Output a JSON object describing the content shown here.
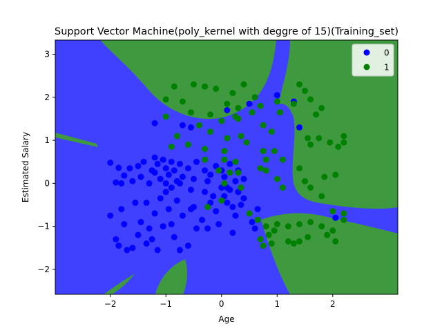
{
  "chart_data": {
    "type": "scatter",
    "title": "Support Vector Machine(poly_kernel with deggre of 15)(Training_set)",
    "xlabel": "Age",
    "ylabel": "Estimated Salary",
    "xlim": [
      -2.99,
      3.17
    ],
    "ylim": [
      -2.58,
      3.33
    ],
    "xticks": [
      -2,
      -1,
      0,
      1,
      2
    ],
    "yticks": [
      -2,
      -1,
      0,
      1,
      2,
      3
    ],
    "grid": false,
    "legend_position": "top-right",
    "region_colors": {
      "0": "#4040ff",
      "1": "#3f9a3f"
    },
    "series": [
      {
        "name": "0",
        "color": "#0000ff",
        "points": [
          [
            -2.0,
            0.48
          ],
          [
            -1.85,
            0.36
          ],
          [
            -1.75,
            0.18
          ],
          [
            -1.65,
            0.35
          ],
          [
            -1.6,
            0.05
          ],
          [
            -1.8,
            0.0
          ],
          [
            -1.9,
            0.02
          ],
          [
            -1.5,
            0.4
          ],
          [
            -1.45,
            0.15
          ],
          [
            -1.4,
            0.5
          ],
          [
            -1.3,
            0.0
          ],
          [
            -1.25,
            0.3
          ],
          [
            -1.2,
            0.6
          ],
          [
            -1.15,
            0.45
          ],
          [
            -1.1,
            0.1
          ],
          [
            -1.05,
            0.55
          ],
          [
            -1.0,
            0.35
          ],
          [
            -0.95,
            0.2
          ],
          [
            -0.9,
            0.5
          ],
          [
            -0.85,
            0.3
          ],
          [
            -0.8,
            0.05
          ],
          [
            -0.75,
            0.45
          ],
          [
            -0.7,
            0.15
          ],
          [
            -0.6,
            0.35
          ],
          [
            -0.5,
            0.1
          ],
          [
            -0.45,
            0.5
          ],
          [
            -0.3,
            0.3
          ],
          [
            -0.25,
            0.05
          ],
          [
            -0.2,
            0.2
          ],
          [
            -0.1,
            0.4
          ],
          [
            0.0,
            0.3
          ],
          [
            0.05,
            0.15
          ],
          [
            0.1,
            -0.1
          ],
          [
            0.15,
            0.45
          ],
          [
            0.25,
            0.05
          ],
          [
            0.3,
            0.3
          ],
          [
            0.4,
            0.1
          ],
          [
            -1.2,
            0.25
          ],
          [
            -1.0,
            0.0
          ],
          [
            -0.9,
            -0.1
          ],
          [
            -0.75,
            0.0
          ],
          [
            -2.0,
            -0.75
          ],
          [
            -1.9,
            -1.3
          ],
          [
            -1.85,
            -1.45
          ],
          [
            -1.8,
            -0.6
          ],
          [
            -1.75,
            -0.95
          ],
          [
            -1.7,
            -1.55
          ],
          [
            -1.6,
            -1.5
          ],
          [
            -1.55,
            -0.45
          ],
          [
            -1.5,
            -1.2
          ],
          [
            -1.45,
            -0.9
          ],
          [
            -1.35,
            -0.45
          ],
          [
            -1.35,
            -1.4
          ],
          [
            -1.3,
            -1.05
          ],
          [
            -1.25,
            -1.3
          ],
          [
            -1.2,
            -0.7
          ],
          [
            -1.15,
            -1.55
          ],
          [
            -1.1,
            -0.35
          ],
          [
            -1.05,
            -1.0
          ],
          [
            -1.0,
            -0.2
          ],
          [
            -0.95,
            -0.6
          ],
          [
            -0.9,
            -0.95
          ],
          [
            -0.85,
            -1.25
          ],
          [
            -0.8,
            -0.4
          ],
          [
            -0.75,
            -1.55
          ],
          [
            -0.7,
            -0.75
          ],
          [
            -0.6,
            -1.45
          ],
          [
            -0.55,
            -0.15
          ],
          [
            -0.5,
            -0.55
          ],
          [
            -0.45,
            -1.05
          ],
          [
            -0.35,
            -0.85
          ],
          [
            -0.3,
            -0.2
          ],
          [
            -0.25,
            -1.05
          ],
          [
            -0.2,
            -0.45
          ],
          [
            -0.15,
            -0.3
          ],
          [
            -0.1,
            -0.65
          ],
          [
            0.0,
            -0.1
          ],
          [
            0.05,
            -0.3
          ],
          [
            0.1,
            -0.45
          ],
          [
            0.15,
            -0.15
          ],
          [
            0.2,
            -0.55
          ],
          [
            0.25,
            -0.75
          ],
          [
            0.3,
            -0.2
          ],
          [
            0.35,
            -0.5
          ],
          [
            0.4,
            -0.35
          ],
          [
            0.55,
            -0.9
          ],
          [
            0.6,
            -1.05
          ],
          [
            0.65,
            -0.6
          ],
          [
            -0.55,
            1.3
          ],
          [
            -0.7,
            1.35
          ],
          [
            -1.2,
            1.4
          ],
          [
            0.1,
            1.7
          ],
          [
            0.5,
            1.85
          ],
          [
            1.0,
            2.05
          ],
          [
            1.3,
            1.9
          ],
          [
            1.4,
            1.3
          ],
          [
            -0.55,
            -0.6
          ],
          [
            -0.05,
            -0.95
          ],
          [
            2.05,
            -0.8
          ],
          [
            0.2,
            -1.15
          ]
        ]
      },
      {
        "name": "1",
        "color": "#008000",
        "points": [
          [
            -1.0,
            1.95
          ],
          [
            -0.85,
            2.25
          ],
          [
            -0.7,
            1.9
          ],
          [
            -0.5,
            2.3
          ],
          [
            -0.3,
            2.25
          ],
          [
            -0.1,
            2.2
          ],
          [
            0.2,
            2.1
          ],
          [
            0.4,
            2.3
          ],
          [
            0.6,
            2.0
          ],
          [
            -1.0,
            1.55
          ],
          [
            -0.8,
            1.1
          ],
          [
            -0.6,
            0.9
          ],
          [
            -0.4,
            1.35
          ],
          [
            -0.2,
            1.6
          ],
          [
            0.0,
            1.45
          ],
          [
            0.1,
            1.05
          ],
          [
            0.35,
            1.1
          ],
          [
            0.3,
            1.75
          ],
          [
            0.7,
            1.8
          ],
          [
            0.75,
            1.35
          ],
          [
            0.9,
            1.2
          ],
          [
            1.0,
            1.9
          ],
          [
            1.05,
            1.65
          ],
          [
            0.75,
            0.75
          ],
          [
            0.8,
            0.55
          ],
          [
            0.95,
            0.75
          ],
          [
            1.1,
            0.55
          ],
          [
            0.7,
            0.35
          ],
          [
            0.8,
            0.3
          ],
          [
            1.0,
            0.1
          ],
          [
            1.1,
            -0.1
          ],
          [
            1.3,
            1.85
          ],
          [
            1.4,
            2.3
          ],
          [
            1.5,
            2.15
          ],
          [
            1.6,
            1.95
          ],
          [
            1.7,
            1.6
          ],
          [
            1.8,
            1.75
          ],
          [
            1.55,
            1.05
          ],
          [
            1.6,
            0.9
          ],
          [
            1.75,
            1.05
          ],
          [
            1.95,
            0.95
          ],
          [
            2.1,
            0.85
          ],
          [
            2.2,
            1.1
          ],
          [
            2.2,
            0.95
          ],
          [
            1.4,
            0.35
          ],
          [
            1.5,
            0.05
          ],
          [
            1.6,
            -0.1
          ],
          [
            1.85,
            0.15
          ],
          [
            2.05,
            0.2
          ],
          [
            1.8,
            -0.3
          ],
          [
            2.0,
            -0.65
          ],
          [
            2.2,
            -0.7
          ],
          [
            2.2,
            -0.85
          ],
          [
            1.0,
            -0.95
          ],
          [
            1.2,
            -1.0
          ],
          [
            1.4,
            -0.95
          ],
          [
            1.6,
            -0.9
          ],
          [
            1.8,
            -1.0
          ],
          [
            2.0,
            -1.1
          ],
          [
            1.2,
            -1.35
          ],
          [
            1.3,
            -1.4
          ],
          [
            1.4,
            -1.35
          ],
          [
            1.55,
            -1.25
          ],
          [
            1.9,
            -1.2
          ],
          [
            2.05,
            -1.35
          ],
          [
            0.95,
            -1.1
          ],
          [
            0.85,
            -1.2
          ],
          [
            0.7,
            -1.3
          ],
          [
            0.75,
            -1.45
          ],
          [
            0.9,
            -1.4
          ],
          [
            0.8,
            -1.0
          ],
          [
            0.65,
            -0.85
          ],
          [
            0.5,
            -0.7
          ],
          [
            -0.3,
            0.8
          ],
          [
            -0.3,
            0.55
          ],
          [
            0.25,
            0.5
          ],
          [
            0.05,
            0.75
          ],
          [
            -0.05,
            0.3
          ],
          [
            0.3,
            0.25
          ],
          [
            0.05,
            0.0
          ],
          [
            0.15,
            0.25
          ],
          [
            0.35,
            -0.1
          ],
          [
            0.0,
            -0.4
          ],
          [
            -0.25,
            -0.55
          ],
          [
            0.3,
            1.5
          ],
          [
            -0.55,
            1.65
          ],
          [
            0.1,
            1.85
          ],
          [
            0.25,
            1.55
          ],
          [
            0.05,
            0.55
          ],
          [
            0.45,
            0.95
          ],
          [
            -0.9,
            0.85
          ],
          [
            -0.2,
            1.2
          ],
          [
            0.55,
            1.65
          ]
        ]
      }
    ]
  }
}
